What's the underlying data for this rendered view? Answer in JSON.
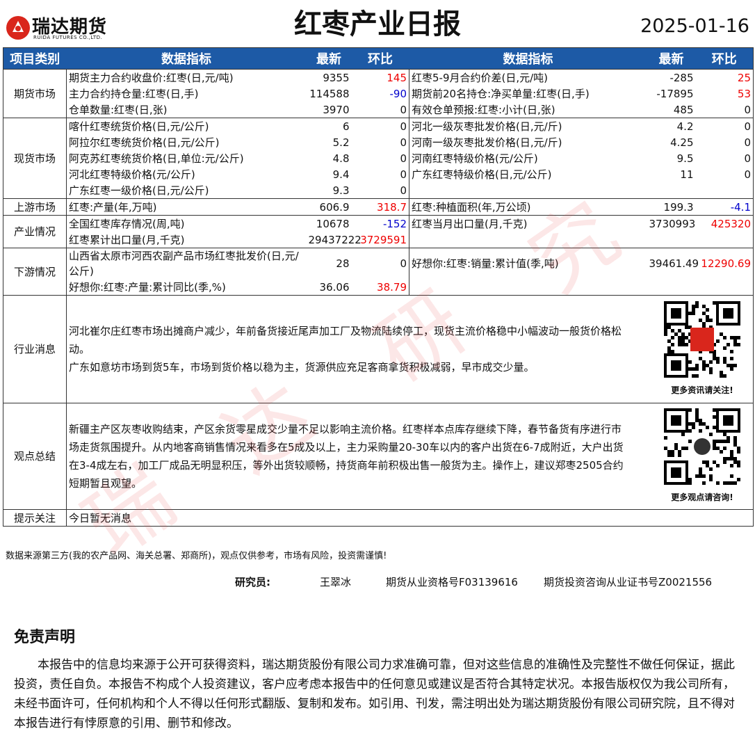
{
  "header": {
    "logo_name": "瑞达期货",
    "logo_sub": "RUIDA FUTURES CO.,LTD.",
    "title": "红枣产业日报",
    "date": "2025-01-16"
  },
  "table": {
    "columns": [
      "项目类别",
      "数据指标",
      "最新",
      "环比",
      "数据指标",
      "最新",
      "环比"
    ],
    "sections": [
      {
        "category": "期货市场",
        "rows": [
          [
            "期货主力合约收盘价:红枣(日,元/吨)",
            9355,
            145,
            "红枣5-9月合约价差(日,元/吨)",
            -285,
            25
          ],
          [
            "主力合约持仓量:红枣(日,手)",
            114588,
            -90,
            "期货前20名持仓:净买单量:红枣(日,手)",
            -17895,
            53
          ],
          [
            "仓单数量:红枣(日,张)",
            3970,
            0,
            "有效仓单预报:红枣:小计(日,张)",
            485,
            0
          ]
        ]
      },
      {
        "category": "现货市场",
        "rows": [
          [
            "喀什红枣统货价格(日,元/公斤)",
            6,
            0,
            "河北一级灰枣批发价格(日,元/斤)",
            4.2,
            0
          ],
          [
            "阿拉尔红枣统货价格(日,元/公斤)",
            5.2,
            0,
            "河南一级灰枣批发价格(日,元/斤)",
            4.25,
            0
          ],
          [
            "阿克苏红枣统货价格(日,单位:元/公斤)",
            4.8,
            0,
            "河南红枣特级价格(元/公斤)",
            9.5,
            0
          ],
          [
            "河北红枣特级价格(元/公斤)",
            9.4,
            0,
            "广东红枣特级价格(日,元/公斤)",
            11,
            0
          ],
          [
            "广东红枣一级价格(日,元/公斤)",
            9.3,
            0
          ]
        ]
      },
      {
        "category": "上游市场",
        "rows": [
          [
            "红枣:产量(年,万吨)",
            606.9,
            318.7,
            "红枣:种植面积(年,万公顷)",
            199.3,
            -4.1
          ]
        ]
      },
      {
        "category": "产业情况",
        "rows": [
          [
            "全国红枣库存情况(周,吨)",
            10678,
            -152,
            "红枣当月出口量(月,千克)",
            3730993,
            425320
          ],
          [
            "红枣累计出口量(月,千克)",
            29437222,
            3729591
          ]
        ]
      },
      {
        "category": "下游情况",
        "rows": [
          [
            "山西省太原市河西农副产品市场红枣批发价(日,元/公斤)",
            28,
            0,
            "好想你:红枣:销量:累计值(季,吨)",
            39461.49,
            12290.69
          ],
          [
            "好想你:红枣:产量:累计同比(季,%)",
            36.06,
            38.79
          ]
        ]
      }
    ],
    "notes": [
      {
        "category": "行业消息",
        "paragraphs": [
          "河北崔尔庄红枣市场出摊商户减少，年前备货接近尾声加工厂及物流陆续停工，现货主流价格稳中小幅波动一般货价格松动。",
          "广东如意坊市场到货5车，市场到货价格以稳为主，货源供应充足客商拿货积极减弱，早市成交少量。"
        ],
        "qr_caption": "更多资讯请关注!"
      },
      {
        "category": "观点总结",
        "paragraphs": [
          "新疆主产区灰枣收购结束，产区余货零星成交少量不足以影响主流价格。红枣样本点库存继续下降，春节备货有序进行市场走货氛围提升。从内地客商销售情况来看多在5成及以上，主力采购量20-30车以内的客户出货在6-7成附近，大户出货在3-4成左右，加工厂成品无明显积压，等外出货较顺畅，持货商年前积极出售一般货为主。操作上，建议郑枣2505合约短期暂且观望。"
        ],
        "qr_caption": "更多观点请咨询!"
      }
    ],
    "tips": {
      "category": "提示关注",
      "text": "今日暂无消息"
    }
  },
  "source": "数据来源第三方(我的农产品网、海关总署、郑商所)，观点仅供参考，市场有风险，投资需谨慎!",
  "researcher": {
    "label": "研究员:",
    "name": "王翠冰",
    "license1": "期货从业资格号F03139616",
    "license2": "期货投资咨询从业证书号Z0021556"
  },
  "disclaimer": {
    "title": "免责声明",
    "text": "本报告中的信息均来源于公开可获得资料，瑞达期货股份有限公司力求准确可靠，但对这些信息的准确性及完整性不做任何保证，据此投资，责任自负。本报告不构成个人投资建议，客户应考虑本报告中的任何意见或建议是否符合其特定状况。本报告版权仅为我公司所有，未经书面许可，任何机构和个人不得以任何形式翻版、复制和发布。如引用、刊发，需注明出处为瑞达期货股份有限公司研究院，且不得对本报告进行有悖原意的引用、删节和修改。"
  },
  "watermark": [
    "瑞",
    "达",
    "研",
    "究"
  ]
}
